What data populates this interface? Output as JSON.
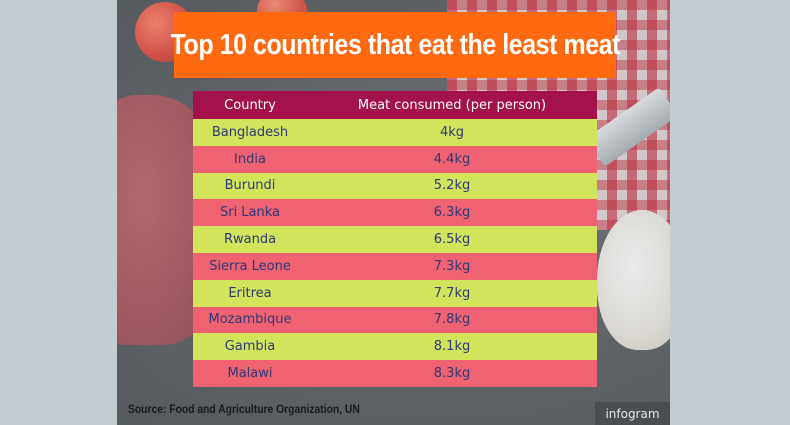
{
  "title": "Top 10 countries that eat the least meat",
  "source": "Source: Food and Agriculture Organization, UN",
  "brand": "infogram",
  "colors": {
    "banner": "#ff6a10",
    "header": "#a3124a",
    "row_green": "#d2e35c",
    "row_red": "#ee6272",
    "row_text": "#2e3a78"
  },
  "chart_data": {
    "type": "table",
    "title": "Top 10 countries that eat the least meat",
    "columns": [
      "Country",
      "Meat consumed (per person)"
    ],
    "rows": [
      {
        "country": "Bangladesh",
        "value": "4kg"
      },
      {
        "country": "India",
        "value": "4.4kg"
      },
      {
        "country": "Burundi",
        "value": "5.2kg"
      },
      {
        "country": "Sri Lanka",
        "value": "6.3kg"
      },
      {
        "country": "Rwanda",
        "value": "6.5kg"
      },
      {
        "country": "Sierra Leone",
        "value": "7.3kg"
      },
      {
        "country": "Eritrea",
        "value": "7.7kg"
      },
      {
        "country": "Mozambique",
        "value": "7.8kg"
      },
      {
        "country": "Gambia",
        "value": "8.1kg"
      },
      {
        "country": "Malawi",
        "value": "8.3kg"
      }
    ]
  }
}
